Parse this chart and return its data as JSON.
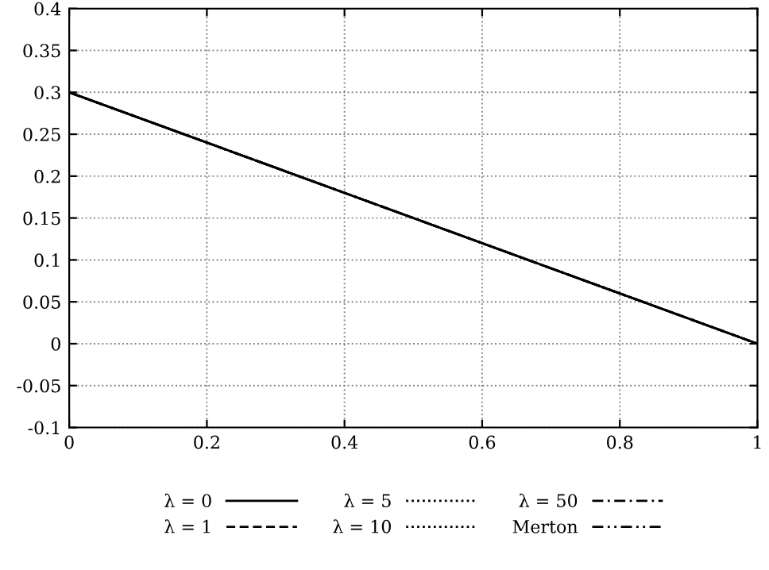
{
  "chart_data": {
    "type": "line",
    "x": [
      0,
      1
    ],
    "series": [
      {
        "name": "λ = 0",
        "color": "#000000",
        "values": [
          0.3,
          0
        ],
        "line_style": "solid"
      },
      {
        "name": "λ = 1",
        "color": "#000000",
        "values": [
          0.3,
          0
        ],
        "line_style": "dashed"
      },
      {
        "name": "λ = 5",
        "color": "#000000",
        "values": [
          0.3,
          0
        ],
        "line_style": "dotted"
      },
      {
        "name": "λ = 10",
        "color": "#000000",
        "values": [
          0.3,
          0
        ],
        "line_style": "dotted"
      },
      {
        "name": "λ = 50",
        "color": "#000000",
        "values": [
          0.3,
          0
        ],
        "line_style": "dashdot"
      },
      {
        "name": "Merton",
        "color": "#000000",
        "values": [
          0.3,
          0
        ],
        "line_style": "dashdotdot"
      }
    ],
    "xlim": [
      0,
      1
    ],
    "xticks": [
      0,
      0.2,
      0.4,
      0.6,
      0.8,
      1
    ],
    "ylim": [
      -0.1,
      0.4
    ],
    "yticks": [
      {
        "value": -0.1,
        "label": "-0.1"
      },
      {
        "value": -0.05,
        "label": "-0.05"
      },
      0,
      0.05,
      0.1,
      0.15,
      0.2,
      0.25,
      0.3,
      0.35,
      0.4
    ],
    "grid": true,
    "legend": "bottom",
    "marker": "none"
  }
}
